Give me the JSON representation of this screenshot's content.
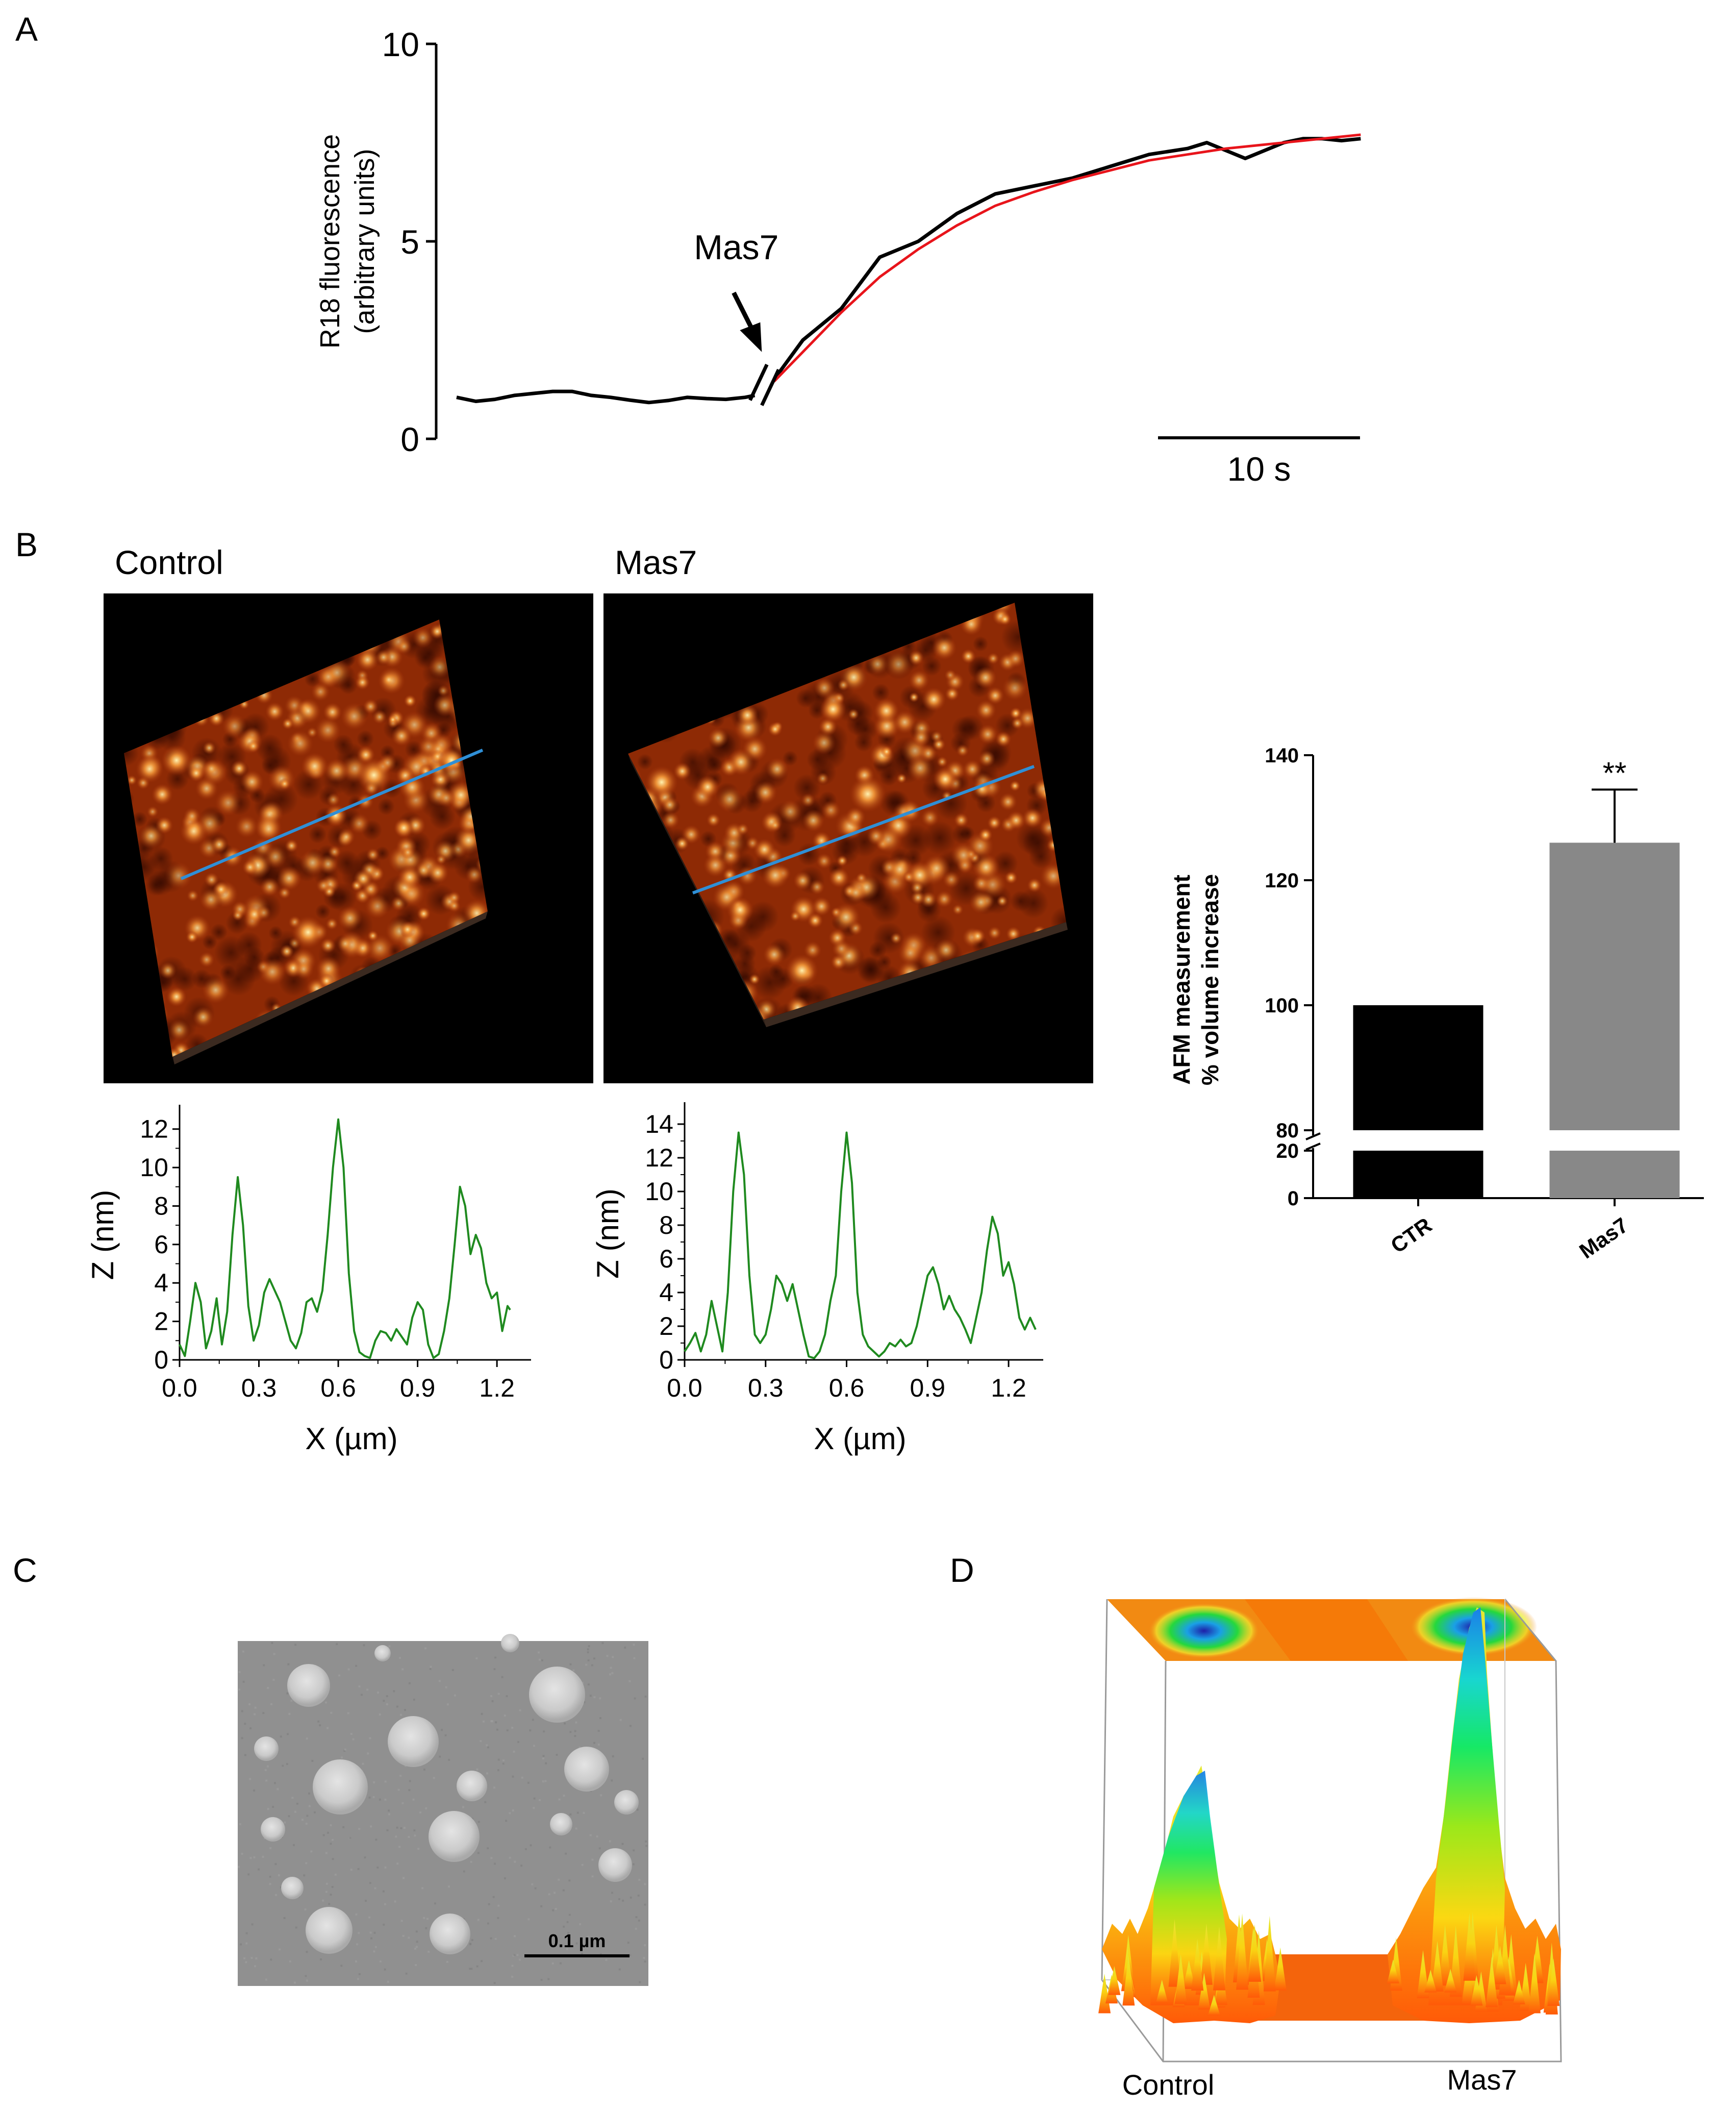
{
  "panels": {
    "a": "A",
    "b": "B",
    "c": "C",
    "d": "D"
  },
  "panel_b": {
    "control_title": "Control",
    "mas7_title": "Mas7"
  },
  "panel_c": {
    "scale_bar": "0.1 µm"
  },
  "panel_d": {
    "label_control": "Control",
    "label_mas7": "Mas7"
  },
  "colors": {
    "trace": "#000000",
    "fit": "#e8141b",
    "profile": "#1f8a1f",
    "line_scan": "#2f8fd6",
    "bar_ctr": "#000000",
    "bar_mas7": "#888888"
  },
  "chart_data": [
    {
      "type": "line",
      "id": "fluorescence",
      "title": "",
      "ylabel": [
        "R18 fluorescence",
        "(arbitrary units)"
      ],
      "xlabel": "",
      "ylim": [
        0,
        10
      ],
      "yticks": [
        "0",
        "5",
        "10"
      ],
      "annotation": "Mas7",
      "scalebar_label": "10 s",
      "scalebar_seconds": 10,
      "time_range": [
        0,
        48
      ],
      "mas7_time": 16,
      "series": [
        {
          "name": "baseline",
          "color": "#000000",
          "x": [
            0,
            1,
            2,
            3,
            4,
            5,
            6,
            7,
            8,
            9,
            10,
            11,
            12,
            13,
            14,
            15,
            15.5
          ],
          "y": [
            1.05,
            0.95,
            1.0,
            1.1,
            1.15,
            1.2,
            1.2,
            1.1,
            1.05,
            0.98,
            0.92,
            0.97,
            1.05,
            1.02,
            1.0,
            1.05,
            1.1
          ]
        },
        {
          "name": "response",
          "color": "#000000",
          "x": [
            16.5,
            18,
            20,
            22,
            24,
            26,
            28,
            30,
            32,
            34,
            36,
            38,
            39,
            40,
            41,
            42,
            43,
            44,
            45,
            46,
            47
          ],
          "y": [
            1.5,
            2.5,
            3.3,
            4.6,
            5.0,
            5.7,
            6.2,
            6.4,
            6.6,
            6.9,
            7.2,
            7.35,
            7.5,
            7.3,
            7.1,
            7.3,
            7.5,
            7.6,
            7.6,
            7.55,
            7.6
          ]
        },
        {
          "name": "fit",
          "color": "#e8141b",
          "x": [
            16.5,
            18,
            20,
            22,
            24,
            26,
            28,
            30,
            32,
            34,
            36,
            38,
            40,
            42,
            44,
            46,
            47
          ],
          "y": [
            1.45,
            2.2,
            3.2,
            4.1,
            4.8,
            5.4,
            5.9,
            6.25,
            6.55,
            6.8,
            7.05,
            7.2,
            7.35,
            7.45,
            7.55,
            7.65,
            7.7
          ]
        }
      ]
    },
    {
      "type": "line",
      "id": "profile_control",
      "xlabel": "X (µm)",
      "ylabel": "Z (nm)",
      "xlim": [
        0,
        1.3
      ],
      "ylim": [
        0,
        13
      ],
      "xticks": [
        "0.0",
        "0.3",
        "0.6",
        "0.9",
        "1.2"
      ],
      "yticks": [
        "0",
        "2",
        "4",
        "6",
        "8",
        "10",
        "12"
      ],
      "series": [
        {
          "name": "Z profile",
          "color": "#1f8a1f",
          "x": [
            0.0,
            0.02,
            0.04,
            0.06,
            0.08,
            0.1,
            0.12,
            0.14,
            0.16,
            0.18,
            0.2,
            0.22,
            0.24,
            0.26,
            0.28,
            0.3,
            0.32,
            0.34,
            0.36,
            0.38,
            0.4,
            0.42,
            0.44,
            0.46,
            0.48,
            0.5,
            0.52,
            0.54,
            0.56,
            0.58,
            0.6,
            0.62,
            0.64,
            0.66,
            0.68,
            0.7,
            0.72,
            0.74,
            0.76,
            0.78,
            0.8,
            0.82,
            0.84,
            0.86,
            0.88,
            0.9,
            0.92,
            0.94,
            0.96,
            0.98,
            1.0,
            1.02,
            1.04,
            1.06,
            1.08,
            1.1,
            1.12,
            1.14,
            1.16,
            1.18,
            1.2,
            1.22,
            1.24,
            1.25
          ],
          "y": [
            0.8,
            0.2,
            2.0,
            4.0,
            3.0,
            0.6,
            1.5,
            3.2,
            0.8,
            2.5,
            6.5,
            9.5,
            7.0,
            2.8,
            1.0,
            1.8,
            3.5,
            4.2,
            3.6,
            3.0,
            2.0,
            1.0,
            0.6,
            1.4,
            3.0,
            3.2,
            2.5,
            3.6,
            6.5,
            10.0,
            12.5,
            10.0,
            4.5,
            1.5,
            0.4,
            0.2,
            0.1,
            1.0,
            1.5,
            1.4,
            1.0,
            1.6,
            1.2,
            0.8,
            2.2,
            3.0,
            2.6,
            0.8,
            0.1,
            0.3,
            1.5,
            3.2,
            6.0,
            9.0,
            8.0,
            5.5,
            6.5,
            5.8,
            4.0,
            3.2,
            3.5,
            1.5,
            2.8,
            2.6
          ]
        }
      ]
    },
    {
      "type": "line",
      "id": "profile_mas7",
      "xlabel": "X (µm)",
      "ylabel": "Z (nm)",
      "xlim": [
        0,
        1.3
      ],
      "ylim": [
        0,
        15
      ],
      "xticks": [
        "0.0",
        "0.3",
        "0.6",
        "0.9",
        "1.2"
      ],
      "yticks": [
        "0",
        "2",
        "4",
        "6",
        "8",
        "10",
        "12",
        "14"
      ],
      "series": [
        {
          "name": "Z profile",
          "color": "#1f8a1f",
          "x": [
            0.0,
            0.02,
            0.04,
            0.06,
            0.08,
            0.1,
            0.12,
            0.14,
            0.16,
            0.18,
            0.2,
            0.22,
            0.24,
            0.26,
            0.28,
            0.3,
            0.32,
            0.34,
            0.36,
            0.38,
            0.4,
            0.42,
            0.44,
            0.46,
            0.48,
            0.5,
            0.52,
            0.54,
            0.56,
            0.58,
            0.6,
            0.62,
            0.64,
            0.66,
            0.68,
            0.7,
            0.72,
            0.74,
            0.76,
            0.78,
            0.8,
            0.82,
            0.84,
            0.86,
            0.88,
            0.9,
            0.92,
            0.94,
            0.96,
            0.98,
            1.0,
            1.02,
            1.04,
            1.06,
            1.08,
            1.1,
            1.12,
            1.14,
            1.16,
            1.18,
            1.2,
            1.22,
            1.24,
            1.26,
            1.28,
            1.3
          ],
          "y": [
            0.5,
            1.0,
            1.6,
            0.5,
            1.5,
            3.5,
            2.0,
            0.5,
            4.0,
            10.0,
            13.5,
            11.0,
            5.0,
            1.5,
            1.0,
            1.5,
            3.0,
            5.0,
            4.5,
            3.5,
            4.5,
            3.0,
            1.5,
            0.2,
            0.1,
            0.5,
            1.5,
            3.5,
            5.0,
            10.0,
            13.5,
            10.5,
            4.0,
            1.5,
            0.8,
            0.5,
            0.2,
            0.5,
            1.0,
            0.8,
            1.2,
            0.8,
            1.0,
            2.0,
            3.5,
            5.0,
            5.5,
            4.5,
            3.0,
            3.8,
            3.0,
            2.5,
            1.8,
            1.0,
            2.5,
            4.0,
            6.5,
            8.5,
            7.5,
            5.0,
            5.8,
            4.5,
            2.5,
            1.8,
            2.5,
            1.8
          ]
        }
      ]
    },
    {
      "type": "bar",
      "id": "afm_volume",
      "categories": [
        "CTR",
        "Mas7"
      ],
      "values": [
        100,
        126
      ],
      "errors": [
        0,
        8.5
      ],
      "colors": [
        "#000000",
        "#888888"
      ],
      "significance": [
        "",
        "**"
      ],
      "ylabel": [
        "AFM measurement",
        "% volume increase"
      ],
      "xlabel": "",
      "ylim_upper": [
        80,
        140
      ],
      "ylim_lower": [
        0,
        20
      ],
      "yticks_upper": [
        "80",
        "100",
        "120",
        "140"
      ],
      "yticks_lower": [
        "0",
        "20"
      ],
      "axis_break": true
    }
  ]
}
